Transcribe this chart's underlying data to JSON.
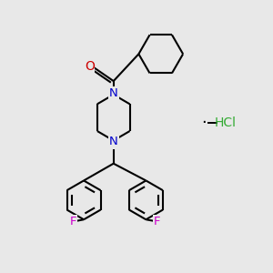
{
  "background_color": "#e8e8e8",
  "bond_color": "#000000",
  "N_color": "#0000cc",
  "O_color": "#cc0000",
  "F_color": "#cc00cc",
  "Cl_color": "#33aa33",
  "line_width": 1.5,
  "figsize": [
    3.0,
    3.0
  ],
  "dpi": 100,
  "xlim": [
    0,
    10
  ],
  "ylim": [
    0,
    10
  ]
}
